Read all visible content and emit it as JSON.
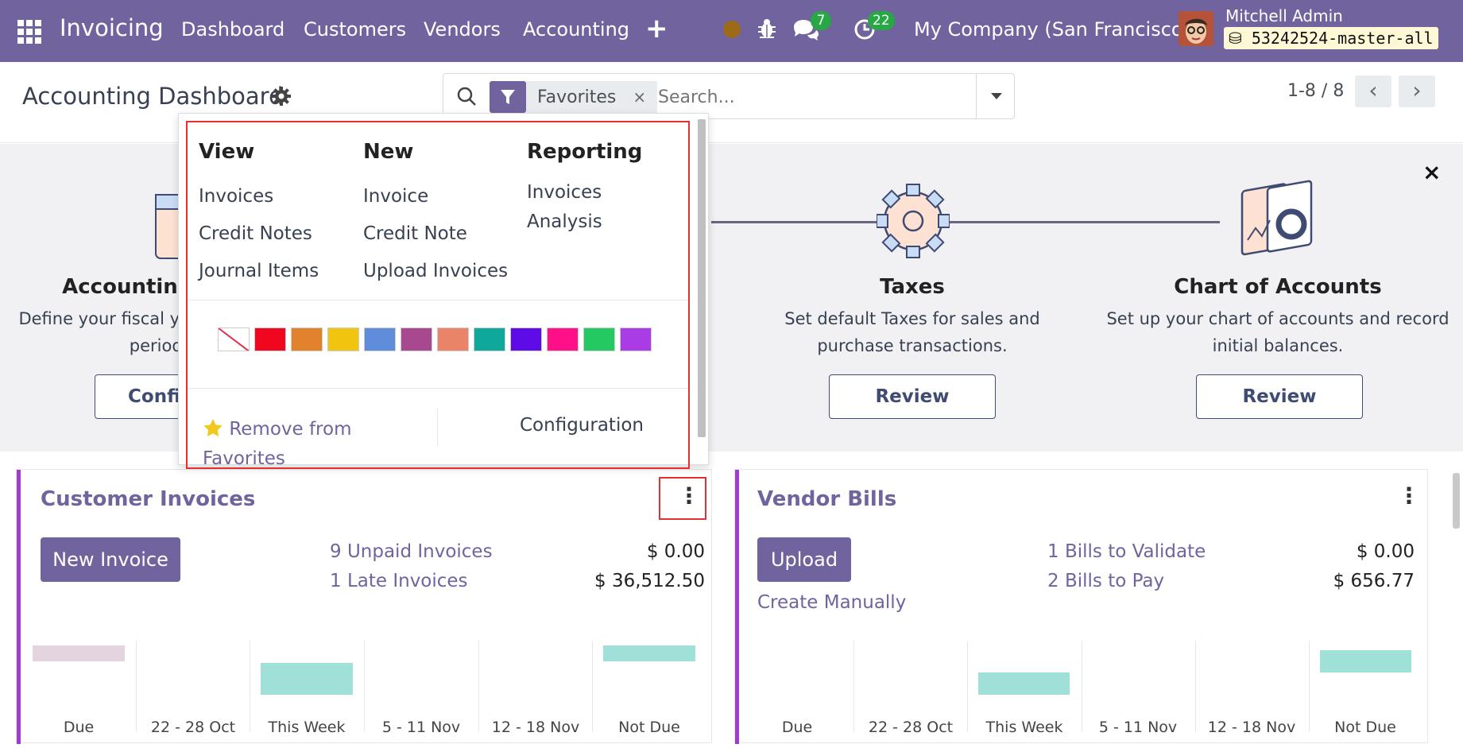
{
  "navbar": {
    "app_name": "Invoicing",
    "menu": [
      "Dashboard",
      "Customers",
      "Vendors",
      "Accounting"
    ],
    "plus": "+",
    "messages_count": "7",
    "activities_count": "22",
    "company": "My Company (San Francisco)",
    "user_name": "Mitchell Admin",
    "database": "53242524-master-all"
  },
  "control_panel": {
    "title": "Accounting Dashboard",
    "facet_label": "Favorites",
    "facet_remove": "×",
    "search_placeholder": "Search...",
    "pager_value": "1-8 / 8",
    "pager_prev": "‹",
    "pager_next": "›"
  },
  "banner": {
    "close": "×",
    "steps": [
      {
        "title": "Accounting Periods",
        "desc": "Define your fiscal years & tax returns periodicity.",
        "button": "Configure"
      },
      {
        "title": "Taxes",
        "desc": "Set default Taxes for sales and purchase transactions.",
        "button": "Review"
      },
      {
        "title": "Chart of Accounts",
        "desc": "Set up your chart of accounts and record initial balances.",
        "button": "Review"
      }
    ]
  },
  "dropdown": {
    "view": {
      "heading": "View",
      "items": [
        "Invoices",
        "Credit Notes",
        "Journal Items"
      ]
    },
    "new": {
      "heading": "New",
      "items": [
        "Invoice",
        "Credit Note",
        "Upload Invoices"
      ]
    },
    "reporting": {
      "heading": "Reporting",
      "items": [
        "Invoices Analysis"
      ]
    },
    "colors": [
      "none",
      "#f0061f",
      "#e3822d",
      "#f1c40f",
      "#5f8ddb",
      "#a8498f",
      "#e98468",
      "#0fa99c",
      "#5e0be8",
      "#ff0f88",
      "#25c962",
      "#a93ce4"
    ],
    "remove_favorite": "Remove from Favorites",
    "configuration": "Configuration"
  },
  "customer_invoices": {
    "title": "Customer Invoices",
    "new_button": "New Invoice",
    "stats": [
      {
        "label": "9 Unpaid Invoices",
        "value": "$ 0.00"
      },
      {
        "label": "1 Late Invoices",
        "value": "$ 36,512.50"
      }
    ]
  },
  "vendor_bills": {
    "title": "Vendor Bills",
    "upload_button": "Upload",
    "create_manually": "Create Manually",
    "stats": [
      {
        "label": "1 Bills to Validate",
        "value": "$ 0.00"
      },
      {
        "label": "2 Bills to Pay",
        "value": "$ 656.77"
      }
    ]
  },
  "chart_data": [
    {
      "type": "bar",
      "categories": [
        "Due",
        "22 - 28 Oct",
        "This Week",
        "5 - 11 Nov",
        "12 - 18 Nov",
        "Not Due"
      ],
      "values": [
        0.85,
        0,
        0.75,
        0,
        0,
        0.85
      ],
      "title": "",
      "xlabel": "",
      "ylabel": "",
      "colors": {
        "past": "#e4d4e0",
        "future": "#9fe0d8"
      }
    },
    {
      "type": "bar",
      "categories": [
        "Due",
        "22 - 28 Oct",
        "This Week",
        "5 - 11 Nov",
        "12 - 18 Nov",
        "Not Due"
      ],
      "values": [
        0,
        0,
        0.6,
        0,
        0,
        0.8
      ],
      "title": "",
      "xlabel": "",
      "ylabel": "",
      "colors": {
        "past": "#e4d4e0",
        "future": "#9fe0d8"
      }
    }
  ],
  "colors": {
    "brand": "#71639e",
    "accent_bar": "#9e3ece",
    "highlight": "#e53030"
  }
}
